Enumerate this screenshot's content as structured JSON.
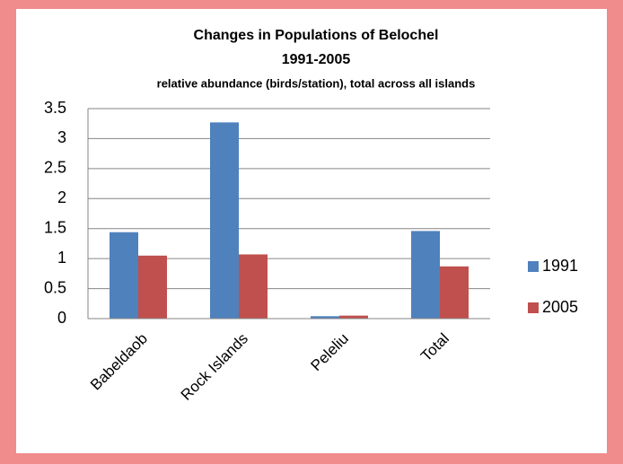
{
  "chart_data": {
    "type": "bar",
    "title": "Changes in Populations of Belochel",
    "subtitle": "1991-2005",
    "annotation": "relative abundance (birds/station), total across all islands",
    "categories": [
      "Babeldaob",
      "Rock Islands",
      "Peleliu",
      "Total"
    ],
    "series": [
      {
        "name": "1991",
        "color": "#4f81bd",
        "values": [
          1.44,
          3.27,
          0.04,
          1.46
        ]
      },
      {
        "name": "2005",
        "color": "#c0504d",
        "values": [
          1.05,
          1.07,
          0.05,
          0.87
        ]
      }
    ],
    "ylim": [
      0,
      3.5
    ],
    "yticks": [
      0,
      0.5,
      1,
      1.5,
      2,
      2.5,
      3,
      3.5
    ],
    "grid": true,
    "legend": "right"
  }
}
